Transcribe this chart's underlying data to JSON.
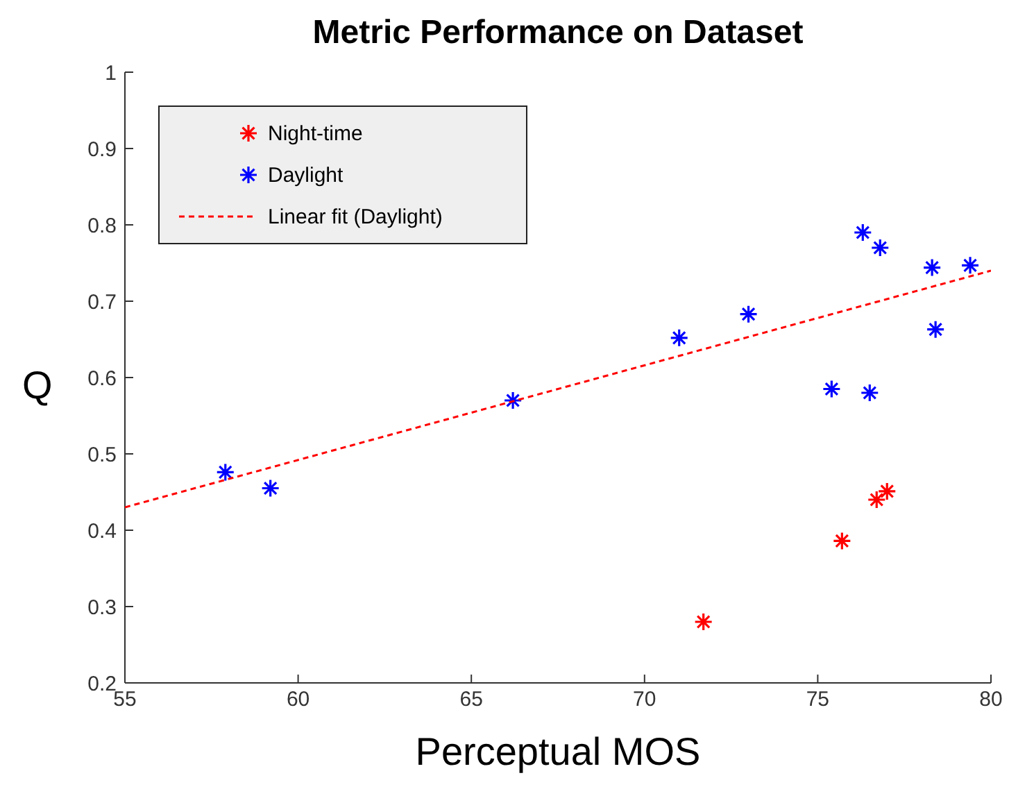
{
  "chart_data": {
    "type": "scatter",
    "title": "Metric Performance on Dataset",
    "xlabel": "Perceptual MOS",
    "ylabel": "Q",
    "xlim": [
      55,
      80
    ],
    "xticks": [
      55,
      60,
      65,
      70,
      75,
      80
    ],
    "ylim": [
      0.2,
      1
    ],
    "yticks": [
      0.2,
      0.3,
      0.4,
      0.5,
      0.6,
      0.7,
      0.8,
      0.9,
      1
    ],
    "marker": "star",
    "grid": false,
    "legend": "top left",
    "series": [
      {
        "name": "Night-time",
        "color": "#ff0000",
        "x": [
          71.7,
          75.7,
          76.7,
          77.0
        ],
        "values": [
          0.28,
          0.386,
          0.44,
          0.451
        ]
      },
      {
        "name": "Daylight",
        "color": "#0000ff",
        "x": [
          57.9,
          59.2,
          66.2,
          71.0,
          73.0,
          75.4,
          76.5,
          76.3,
          76.8,
          78.3,
          78.4,
          79.4
        ],
        "values": [
          0.476,
          0.455,
          0.57,
          0.652,
          0.683,
          0.585,
          0.58,
          0.79,
          0.77,
          0.744,
          0.663,
          0.747
        ]
      },
      {
        "name": "Linear fit (Daylight)",
        "type": "line",
        "marker": "none",
        "line_style": "dashed",
        "color": "#ff0000",
        "x": [
          55,
          80
        ],
        "values": [
          0.43,
          0.74
        ]
      }
    ]
  }
}
